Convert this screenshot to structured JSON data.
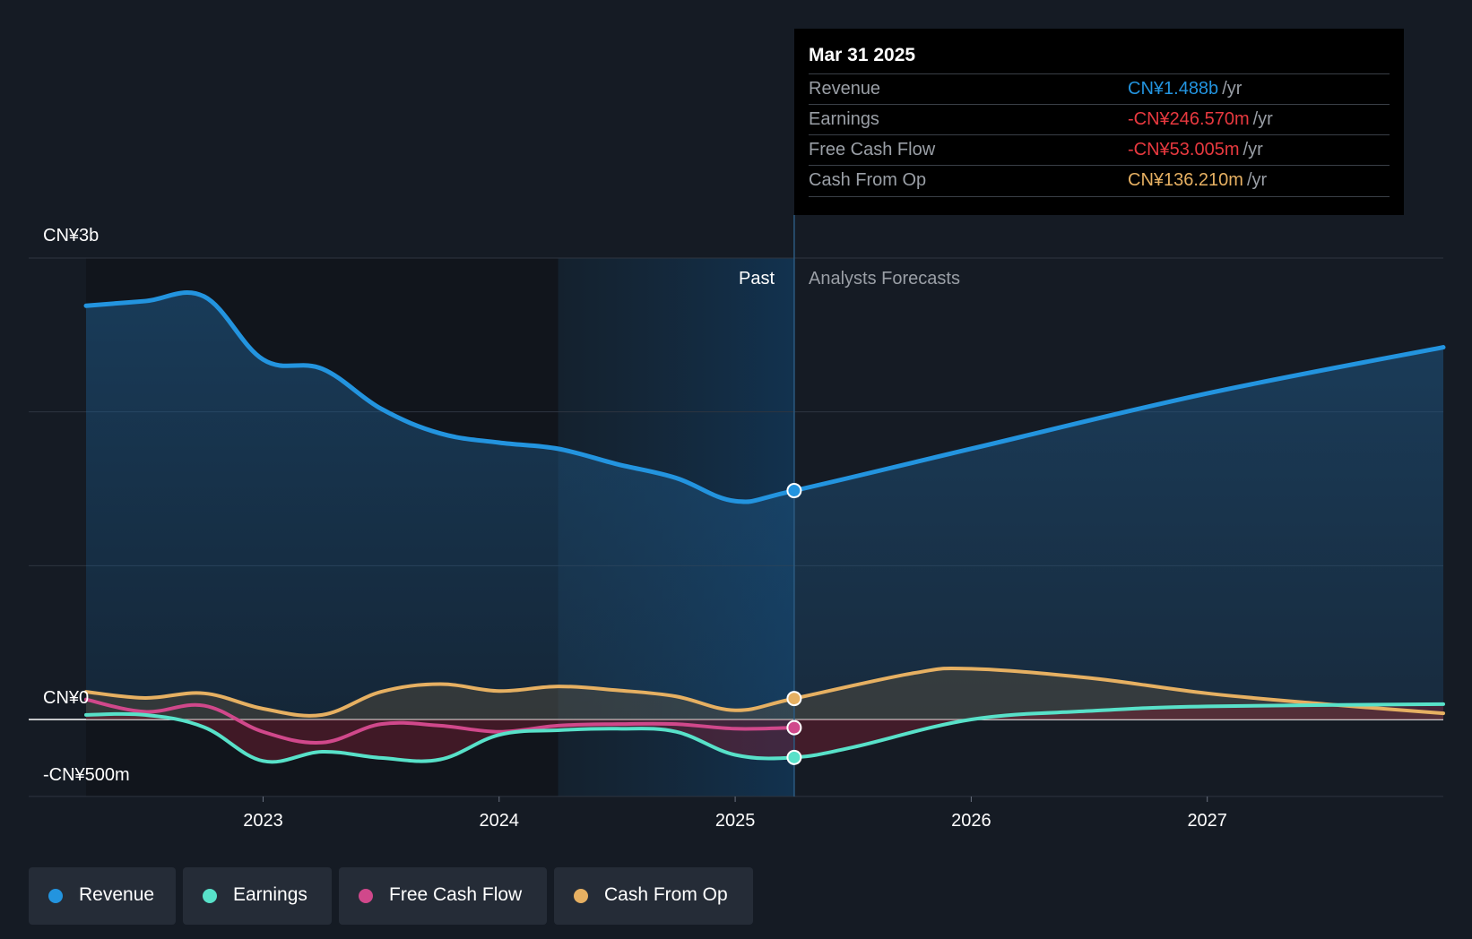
{
  "chart_data": {
    "type": "area",
    "title": "",
    "xlabel": "",
    "ylabel": "",
    "y_axis": {
      "min": -500,
      "max": 3000,
      "unit": "CN¥m",
      "labels": [
        {
          "text": "CN¥3b",
          "value": 3000
        },
        {
          "text": "CN¥0",
          "value": 0
        },
        {
          "text": "-CN¥500m",
          "value": -500
        }
      ],
      "gridlines": [
        3000,
        2000,
        1000,
        0,
        -500
      ]
    },
    "x_axis": {
      "min": 2022.0,
      "max": 2028.0,
      "ticks": [
        {
          "label": "2023",
          "value": 2023
        },
        {
          "label": "2024",
          "value": 2024
        },
        {
          "label": "2025",
          "value": 2025
        },
        {
          "label": "2026",
          "value": 2026
        },
        {
          "label": "2027",
          "value": 2027
        }
      ]
    },
    "past_end": 2025.25,
    "highlight_start": 2024.25,
    "sections": {
      "past": "Past",
      "forecast": "Analysts Forecasts"
    },
    "series": [
      {
        "name": "Revenue",
        "color": "#2394df",
        "fill": true,
        "points": [
          [
            2022.25,
            2690
          ],
          [
            2022.5,
            2720
          ],
          [
            2022.75,
            2750
          ],
          [
            2023.0,
            2340
          ],
          [
            2023.25,
            2280
          ],
          [
            2023.5,
            2020
          ],
          [
            2023.75,
            1860
          ],
          [
            2024.0,
            1800
          ],
          [
            2024.25,
            1760
          ],
          [
            2024.5,
            1660
          ],
          [
            2024.75,
            1570
          ],
          [
            2025.0,
            1420
          ],
          [
            2025.25,
            1488
          ],
          [
            2026.0,
            1760
          ],
          [
            2027.0,
            2120
          ],
          [
            2028.0,
            2420
          ]
        ]
      },
      {
        "name": "Earnings",
        "color": "#58e1c9",
        "fill": false,
        "points": [
          [
            2022.25,
            30
          ],
          [
            2022.5,
            30
          ],
          [
            2022.75,
            -50
          ],
          [
            2023.0,
            -270
          ],
          [
            2023.25,
            -210
          ],
          [
            2023.5,
            -250
          ],
          [
            2023.75,
            -260
          ],
          [
            2024.0,
            -100
          ],
          [
            2024.25,
            -70
          ],
          [
            2024.5,
            -60
          ],
          [
            2024.75,
            -80
          ],
          [
            2025.0,
            -230
          ],
          [
            2025.25,
            -246.57
          ],
          [
            2025.5,
            -180
          ],
          [
            2026.0,
            0
          ],
          [
            2026.5,
            55
          ],
          [
            2027.0,
            85
          ],
          [
            2028.0,
            100
          ]
        ]
      },
      {
        "name": "Free Cash Flow",
        "color": "#d0488b",
        "fill": false,
        "points": [
          [
            2022.25,
            130
          ],
          [
            2022.5,
            50
          ],
          [
            2022.75,
            90
          ],
          [
            2023.0,
            -80
          ],
          [
            2023.25,
            -150
          ],
          [
            2023.5,
            -30
          ],
          [
            2023.75,
            -40
          ],
          [
            2024.0,
            -80
          ],
          [
            2024.25,
            -40
          ],
          [
            2024.5,
            -30
          ],
          [
            2024.75,
            -30
          ],
          [
            2025.0,
            -60
          ],
          [
            2025.25,
            -53.005
          ]
        ]
      },
      {
        "name": "Cash From Op",
        "color": "#e6b062",
        "fill": false,
        "points": [
          [
            2022.25,
            180
          ],
          [
            2022.5,
            140
          ],
          [
            2022.75,
            170
          ],
          [
            2023.0,
            70
          ],
          [
            2023.25,
            30
          ],
          [
            2023.5,
            180
          ],
          [
            2023.75,
            230
          ],
          [
            2024.0,
            185
          ],
          [
            2024.25,
            215
          ],
          [
            2024.5,
            190
          ],
          [
            2024.75,
            150
          ],
          [
            2025.0,
            60
          ],
          [
            2025.25,
            136.21
          ],
          [
            2025.75,
            300
          ],
          [
            2026.0,
            330
          ],
          [
            2026.5,
            270
          ],
          [
            2027.0,
            170
          ],
          [
            2027.5,
            100
          ],
          [
            2028.0,
            40
          ]
        ]
      }
    ]
  },
  "tooltip": {
    "date": "Mar 31 2025",
    "rows": [
      {
        "name": "Revenue",
        "value": "CN¥1.488b",
        "unit": "/yr",
        "color": "#2394df"
      },
      {
        "name": "Earnings",
        "value": "-CN¥246.570m",
        "unit": "/yr",
        "color": "#e8393f"
      },
      {
        "name": "Free Cash Flow",
        "value": "-CN¥53.005m",
        "unit": "/yr",
        "color": "#e8393f"
      },
      {
        "name": "Cash From Op",
        "value": "CN¥136.210m",
        "unit": "/yr",
        "color": "#e6b062"
      }
    ]
  },
  "legend": [
    {
      "label": "Revenue",
      "color": "#2394df"
    },
    {
      "label": "Earnings",
      "color": "#58e1c9"
    },
    {
      "label": "Free Cash Flow",
      "color": "#d0488b"
    },
    {
      "label": "Cash From Op",
      "color": "#e6b062"
    }
  ]
}
